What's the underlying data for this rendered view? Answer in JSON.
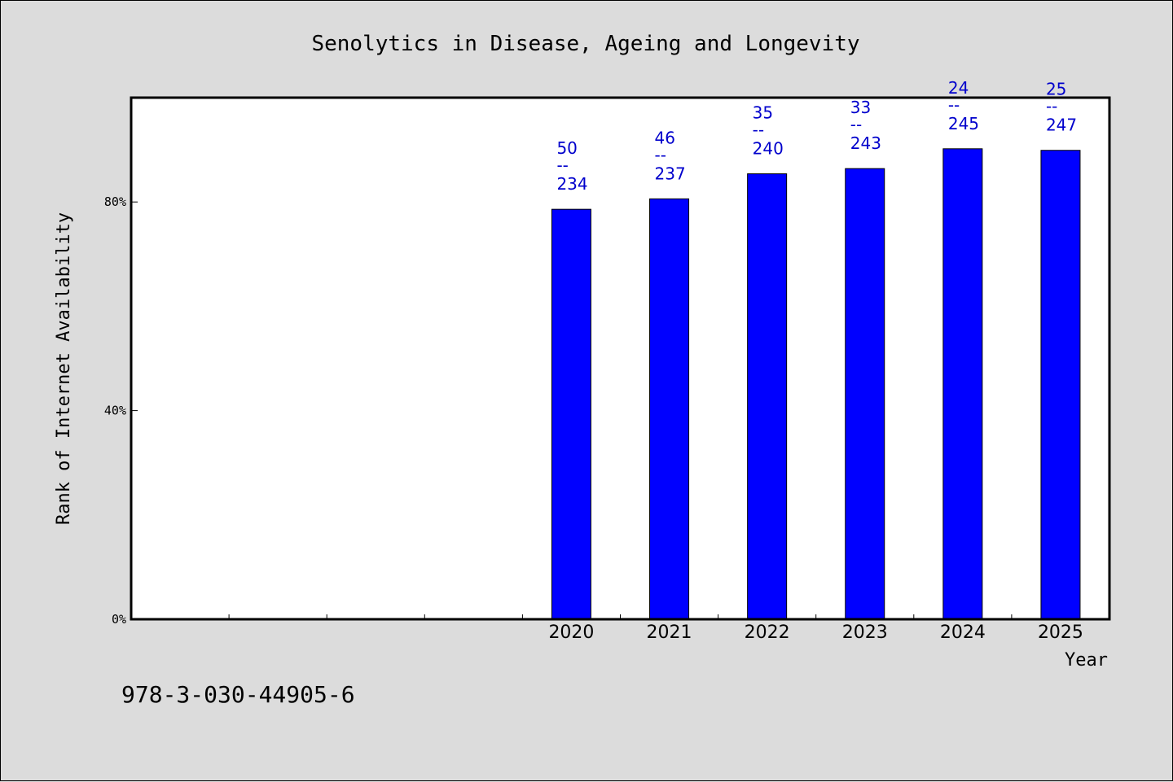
{
  "chart_data": {
    "type": "bar",
    "title": "Senolytics in Disease, Ageing and Longevity",
    "xlabel": "Year",
    "ylabel": "Rank of Internet Availability",
    "categories": [
      "",
      "",
      "",
      "",
      "2020",
      "2021",
      "2022",
      "2023",
      "2024",
      "2025"
    ],
    "values": [
      null,
      null,
      null,
      null,
      78.6,
      80.6,
      85.4,
      86.4,
      90.2,
      89.9
    ],
    "bar_labels": [
      null,
      null,
      null,
      null,
      {
        "rank": "50",
        "sep": "--",
        "total": "234"
      },
      {
        "rank": "46",
        "sep": "--",
        "total": "237"
      },
      {
        "rank": "35",
        "sep": "--",
        "total": "240"
      },
      {
        "rank": "33",
        "sep": "--",
        "total": "243"
      },
      {
        "rank": "24",
        "sep": "--",
        "total": "245"
      },
      {
        "rank": "25",
        "sep": "--",
        "total": "247"
      }
    ],
    "ylim": [
      0,
      100
    ],
    "yticks": [
      {
        "value": 0,
        "label": "0%"
      },
      {
        "value": 40,
        "label": "40%"
      },
      {
        "value": 80,
        "label": "80%"
      }
    ],
    "grid": false,
    "legend": "none",
    "colors": {
      "bar": "#0000ff",
      "label": "#0000cc",
      "background": "#dcdcdc",
      "plot": "#ffffff"
    }
  },
  "footer": "978-3-030-44905-6"
}
